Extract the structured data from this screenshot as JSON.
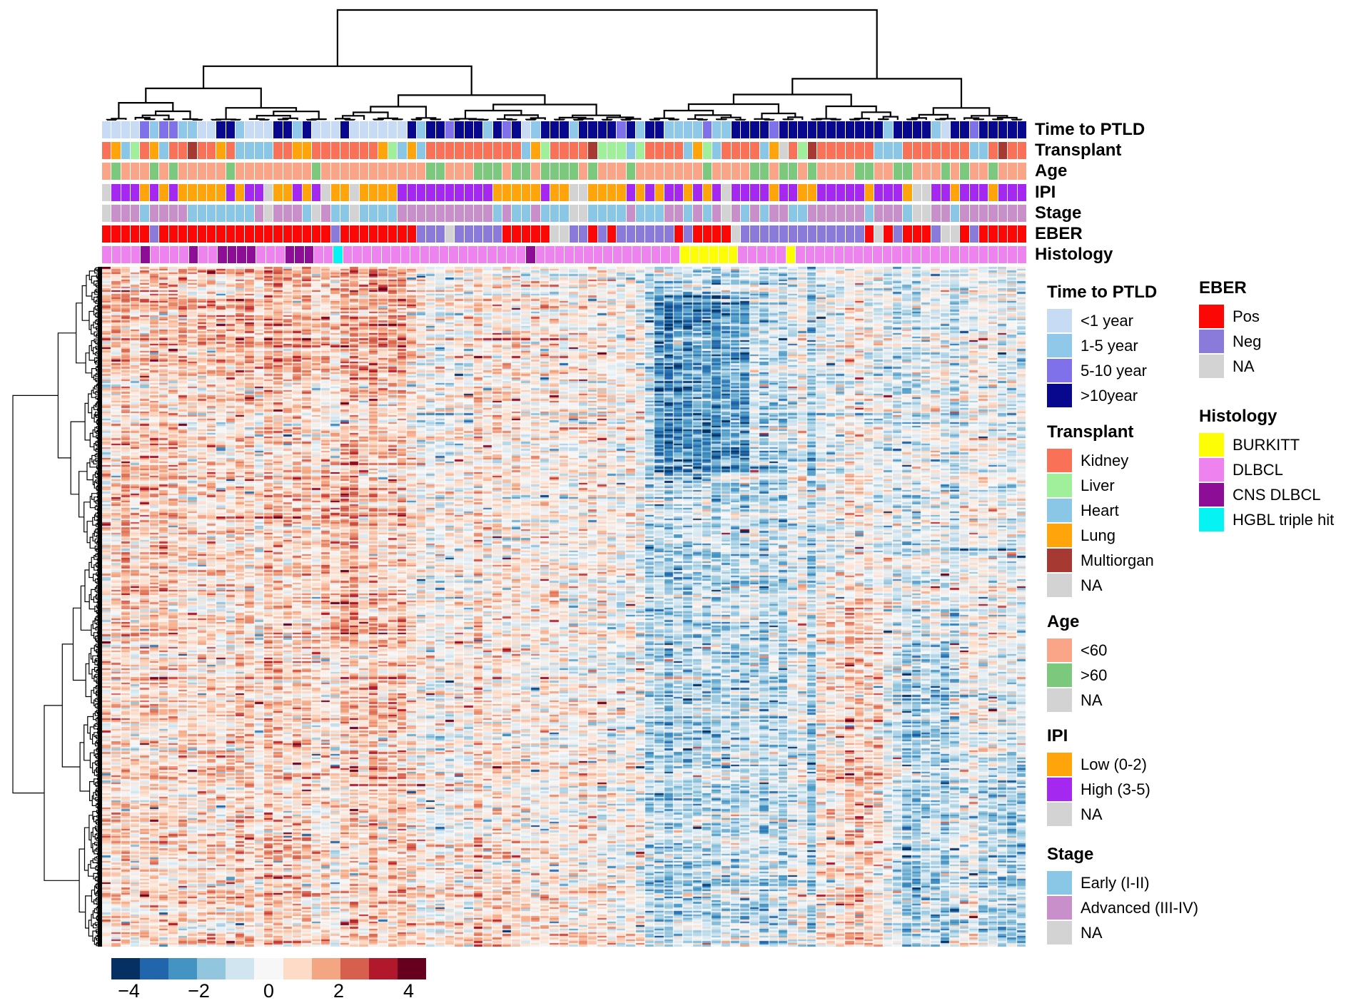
{
  "chart_data": {
    "type": "heatmap",
    "description": "Clustered gene-expression heatmap of PTLD samples with column dendrogram, row dendrogram, seven categorical column annotation tracks, category legends and a diverging blue-white-red color scale.",
    "n_columns": 97,
    "n_rows_estimate": 381,
    "colorbar": {
      "colors": [
        "#053061",
        "#2166AC",
        "#4393C3",
        "#92C5DE",
        "#D1E5F0",
        "#F7F7F7",
        "#FDDBC7",
        "#F4A582",
        "#D6604D",
        "#B2182B",
        "#67001F"
      ],
      "ticks": [
        "−4",
        "−2",
        "0",
        "2",
        "4"
      ],
      "tick_values": [
        -4,
        -2,
        0,
        2,
        4
      ],
      "value_range": [
        -4.5,
        4.5
      ]
    },
    "column_annotations": [
      {
        "name": "Time to PTLD",
        "codes": "AAAACBCCBBAADDBAAADDBDAAADAAAAAADBDDCDDDBDCDABDDDBDDDDCDBDDBBBBCBBDDDDCDDDDDDDDDDDBDDDDBADDCDDDDD",
        "categories": {
          "A": {
            "label": "<1 year",
            "color": "#C7DBF5"
          },
          "B": {
            "label": "1-5 year",
            "color": "#8FC8E8"
          },
          "C": {
            "label": "5-10 year",
            "color": "#7F71E9"
          },
          "D": {
            "label": ">10year",
            "color": "#08088F"
          }
        }
      },
      {
        "name": "Transplant",
        "codes": "KUHVKUHKKMKKUKHHHHKKUUKKKKKKKUVHUHKKKKKKKKKKHUVKKKKMVVVHVKKKKHUVHKKKKHUNKVMKKKKKKHHHKKKKKKKHHKMKK",
        "categories": {
          "K": {
            "label": "Kidney",
            "color": "#F97258"
          },
          "V": {
            "label": "Liver",
            "color": "#A0EF9B"
          },
          "H": {
            "label": "Heart",
            "color": "#8AC6E6"
          },
          "U": {
            "label": "Lung",
            "color": "#FFA40B"
          },
          "M": {
            "label": "Multiorgan",
            "color": "#A63A32"
          },
          "N": {
            "label": "NA",
            "color": "#D3D3D3"
          }
        }
      },
      {
        "name": "Age",
        "codes": "YOYYYOYOYYYYYOYYYYYYYYOYYYYYYYYYYYOOYYYOOOYOOYOOOOYOYYYOYYYYYYYOYYYYOOYOOYOYYYYOOYYOOYYYOYOYYOYYY",
        "categories": {
          "Y": {
            "label": "<60",
            "color": "#FBA588"
          },
          "O": {
            "label": ">60",
            "color": "#7CC97E"
          },
          "N": {
            "label": "NA",
            "color": "#D3D3D3"
          }
        }
      },
      {
        "name": "IPI",
        "codes": "NHHHLHLHLLLLLHLHHNLLHLHNLLNLLLLHHHHHHHHHHLLLLLHLLNNLLLLHLHLHHLHLHNHHHHLHHLLHHHHHLHHHLNNHHLHHHLHHH",
        "categories": {
          "L": {
            "label": "Low (0-2)",
            "color": "#FFA40B"
          },
          "H": {
            "label": "High (3-5)",
            "color": "#A428F0"
          },
          "N": {
            "label": "NA",
            "color": "#D3D3D3"
          }
        }
      },
      {
        "name": "Stage",
        "codes": "NAAAEAAAAEEEEEEEANAAAENAEENEEEEAAAAAAAAAAEAEEAEEENNEEEEAEEEAAEAEANAEAEAAEEAAAAAAEAAAENNAAEAAAAAAA",
        "categories": {
          "E": {
            "label": "Early (I-II)",
            "color": "#8AC6E6"
          },
          "A": {
            "label": "Advanced (III-IV)",
            "color": "#C98FCB"
          },
          "N": {
            "label": "NA",
            "color": "#D3D3D3"
          }
        }
      },
      {
        "name": "EBER",
        "codes": "PPPPPGPPPPPPPPPPPPPPPPPPGPPPPPPPPGGGNGGGGGPPPPPNNGGPGPGGGGGGPGPPPPNGGGGGGGGGGGGGPNPGPPPGNNPGPPPPP",
        "categories": {
          "P": {
            "label": "Pos",
            "color": "#FB0706"
          },
          "G": {
            "label": "Neg",
            "color": "#8A7AD9"
          },
          "N": {
            "label": "NA",
            "color": "#D3D3D3"
          }
        }
      },
      {
        "name": "Histology",
        "codes": "DDDDCDDDDCDDCCCCDDDCCCDDTDDDDDDDDDDDDDDDDDDDCDDDDDDDDDDDDDDDBBBBBBDDDDDBDDDDDDDDDDDDDDDDDDDDDDDD",
        "categories": {
          "D": {
            "label": "DLBCL",
            "color": "#EE82EE"
          },
          "B": {
            "label": "BURKITT",
            "color": "#FDFD05"
          },
          "C": {
            "label": "CNS DLBCL",
            "color": "#8E0D96"
          },
          "T": {
            "label": "HGBL triple hit",
            "color": "#06F3F3"
          }
        }
      }
    ],
    "legends": {
      "column1": [
        {
          "title": "Time to PTLD",
          "items": [
            {
              "label": "<1 year",
              "color": "#C7DBF5"
            },
            {
              "label": "1-5 year",
              "color": "#8FC8E8"
            },
            {
              "label": "5-10 year",
              "color": "#7F71E9"
            },
            {
              "label": ">10year",
              "color": "#08088F"
            }
          ]
        },
        {
          "title": "Transplant",
          "items": [
            {
              "label": "Kidney",
              "color": "#F97258"
            },
            {
              "label": "Liver",
              "color": "#A0EF9B"
            },
            {
              "label": "Heart",
              "color": "#8AC6E6"
            },
            {
              "label": "Lung",
              "color": "#FFA40B"
            },
            {
              "label": "Multiorgan",
              "color": "#A63A32"
            },
            {
              "label": "NA",
              "color": "#D3D3D3"
            }
          ]
        },
        {
          "title": "Age",
          "items": [
            {
              "label": "<60",
              "color": "#FBA588"
            },
            {
              "label": ">60",
              "color": "#7CC97E"
            },
            {
              "label": "NA",
              "color": "#D3D3D3"
            }
          ]
        },
        {
          "title": "IPI",
          "items": [
            {
              "label": "Low (0-2)",
              "color": "#FFA40B"
            },
            {
              "label": "High (3-5)",
              "color": "#A428F0"
            },
            {
              "label": "NA",
              "color": "#D3D3D3"
            }
          ]
        },
        {
          "title": "Stage",
          "items": [
            {
              "label": "Early (I-II)",
              "color": "#8AC6E6"
            },
            {
              "label": "Advanced (III-IV)",
              "color": "#C98FCB"
            },
            {
              "label": "NA",
              "color": "#D3D3D3"
            }
          ]
        }
      ],
      "column2": [
        {
          "title": "EBER",
          "items": [
            {
              "label": "Pos",
              "color": "#FB0706"
            },
            {
              "label": "Neg",
              "color": "#8A7AD9"
            },
            {
              "label": "NA",
              "color": "#D3D3D3"
            }
          ]
        },
        {
          "title": "Histology",
          "items": [
            {
              "label": "BURKITT",
              "color": "#FDFD05"
            },
            {
              "label": "DLBCL",
              "color": "#EE82EE"
            },
            {
              "label": "CNS DLBCL",
              "color": "#8E0D96"
            },
            {
              "label": "HGBL triple hit",
              "color": "#06F3F3"
            }
          ]
        }
      ]
    }
  }
}
